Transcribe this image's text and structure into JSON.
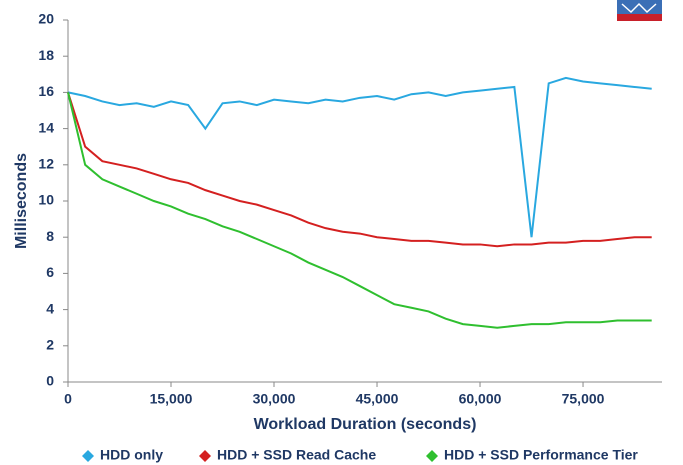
{
  "chart_data": {
    "type": "line",
    "x": [
      0,
      2500,
      5000,
      7500,
      10000,
      12500,
      15000,
      17500,
      20000,
      22500,
      25000,
      27500,
      30000,
      32500,
      35000,
      37500,
      40000,
      42500,
      45000,
      47500,
      50000,
      52500,
      55000,
      57500,
      60000,
      62500,
      65000,
      67500,
      70000,
      72500,
      75000,
      77500,
      80000,
      82500,
      85000
    ],
    "series": [
      {
        "name": "HDD only",
        "color": "#29a8e0",
        "values": [
          16,
          15.8,
          15.5,
          15.3,
          15.4,
          15.2,
          15.5,
          15.3,
          14,
          15.4,
          15.5,
          15.3,
          15.6,
          15.5,
          15.4,
          15.6,
          15.5,
          15.7,
          15.8,
          15.6,
          15.9,
          16,
          15.8,
          16,
          16.1,
          16.2,
          16.3,
          8,
          16.5,
          16.8,
          16.6,
          16.5,
          16.4,
          16.3,
          16.2
        ]
      },
      {
        "name": "HDD + SSD Read Cache",
        "color": "#d42020",
        "values": [
          16,
          13,
          12.2,
          12,
          11.8,
          11.5,
          11.2,
          11,
          10.6,
          10.3,
          10,
          9.8,
          9.5,
          9.2,
          8.8,
          8.5,
          8.3,
          8.2,
          8,
          7.9,
          7.8,
          7.8,
          7.7,
          7.6,
          7.6,
          7.5,
          7.6,
          7.6,
          7.7,
          7.7,
          7.8,
          7.8,
          7.9,
          8,
          8
        ]
      },
      {
        "name": "HDD + SSD Performance Tier",
        "color": "#2fbf2f",
        "values": [
          16,
          12,
          11.2,
          10.8,
          10.4,
          10,
          9.7,
          9.3,
          9,
          8.6,
          8.3,
          7.9,
          7.5,
          7.1,
          6.6,
          6.2,
          5.8,
          5.3,
          4.8,
          4.3,
          4.1,
          3.9,
          3.5,
          3.2,
          3.1,
          3,
          3.1,
          3.2,
          3.2,
          3.3,
          3.3,
          3.3,
          3.4,
          3.4,
          3.4
        ]
      }
    ],
    "xlabel": "Workload Duration (seconds)",
    "ylabel": "Milliseconds",
    "xlim": [
      0,
      86500
    ],
    "ylim": [
      0,
      20
    ],
    "xticks": [
      0,
      {
        "value": 15000,
        "label": "15,000"
      },
      {
        "value": 30000,
        "label": "30,000"
      },
      {
        "value": 45000,
        "label": "45,000"
      },
      {
        "value": 60000,
        "label": "60,000"
      },
      {
        "value": 75000,
        "label": "75,000"
      }
    ],
    "yticks": [
      0,
      2,
      4,
      6,
      8,
      10,
      12,
      14,
      16,
      18,
      20
    ],
    "legend": "bottom"
  }
}
